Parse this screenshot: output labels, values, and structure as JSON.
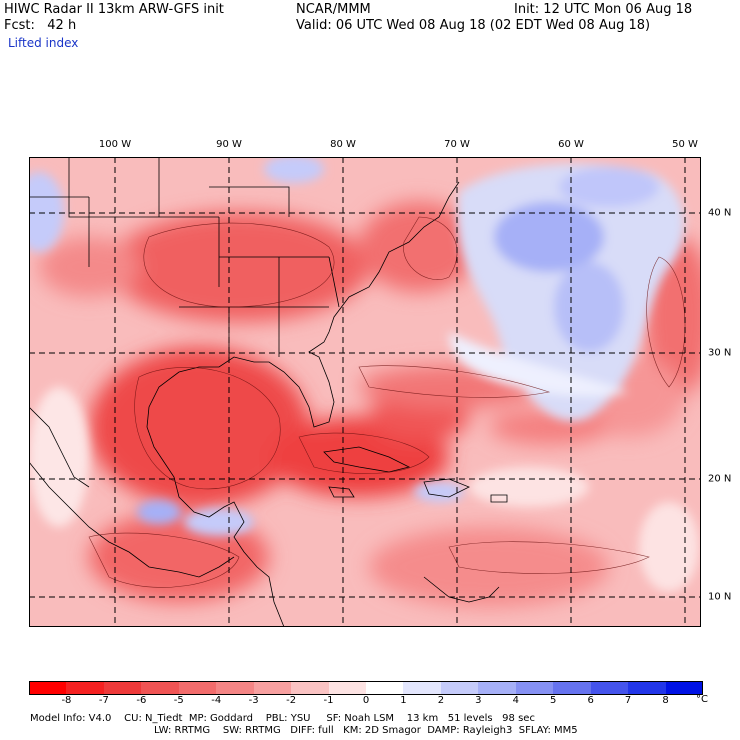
{
  "header": {
    "title_line1": "HIWC Radar II 13km ARW-GFS init",
    "org": "NCAR/MMM",
    "init": "Init: 12 UTC Mon 06 Aug 18",
    "fcst": "Fcst:   42 h",
    "valid": "Valid: 06 UTC Wed 08 Aug 18 (02 EDT Wed 08 Aug 18)",
    "field": "Lifted index"
  },
  "map": {
    "lon_labels": [
      "100 W",
      "90 W",
      "80 W",
      "70 W",
      "60 W",
      "50 W"
    ],
    "lat_labels": [
      "40 N",
      "30 N",
      "20 N",
      "10 N"
    ]
  },
  "colorbar": {
    "unit": "°C",
    "tick_labels": [
      "-8",
      "-7",
      "-6",
      "-5",
      "-4",
      "-3",
      "-2",
      "-1",
      "0",
      "1",
      "2",
      "3",
      "4",
      "5",
      "6",
      "7",
      "8"
    ],
    "colors": [
      "#ff0000",
      "#f52121",
      "#ee3a3a",
      "#f05454",
      "#f26c6c",
      "#f48585",
      "#f7a0a0",
      "#fac3c3",
      "#fde3e3",
      "#ffffff",
      "#e3e6fd",
      "#c5cbfa",
      "#a6b0f7",
      "#8691f3",
      "#6673ef",
      "#4554ec",
      "#2236e9",
      "#0012e5"
    ]
  },
  "footer": {
    "line1": "Model Info: V4.0    CU: N_Tiedt  MP: Goddard    PBL: YSU     SF: Noah LSM    13 km   51 levels   98 sec",
    "line2": "LW: RRTMG    SW: RRTMG   DIFF: full   KM: 2D Smagor  DAMP: Rayleigh3  SFLAY: MM5"
  }
}
